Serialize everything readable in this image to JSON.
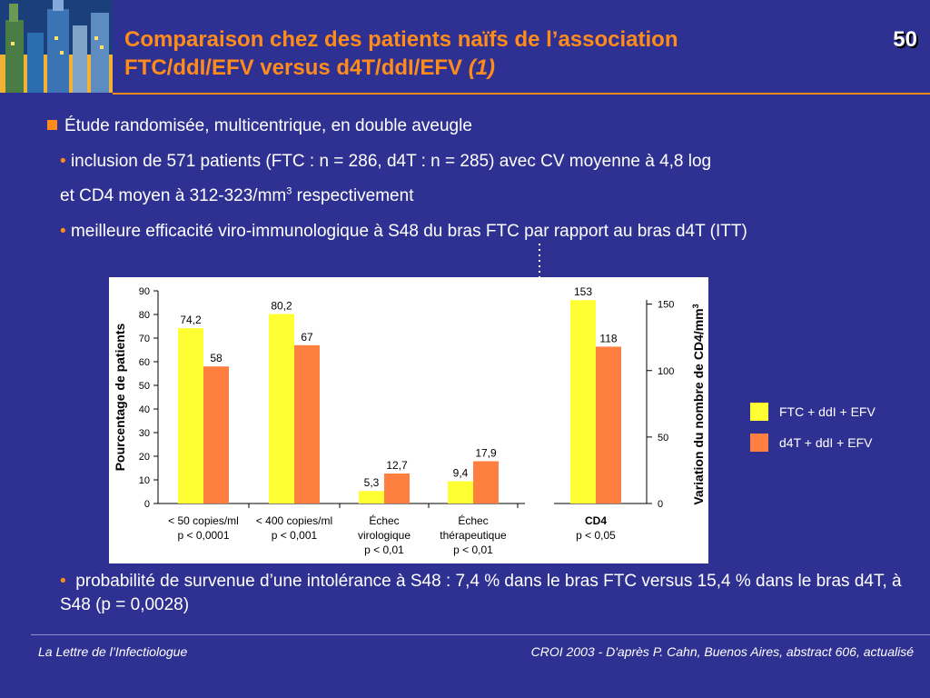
{
  "header": {
    "title_line1": "Comparaison chez des patients naïfs de l’association",
    "title_line2": "FTC/ddI/EFV versus d4T/ddI/EFV ",
    "title_ref": "(1)",
    "page_number": "50"
  },
  "body": {
    "main_bullet": "Étude randomisée, multicentrique, en double aveugle",
    "sub1_line1": "inclusion de 571 patients (FTC : n = 286, d4T : n = 285) avec CV moyenne à 4,8 log",
    "sub1_line2": "et CD4 moyen à 312-323/mm",
    "sub1_line2_sup": "3",
    "sub1_line2_end": " respectivement",
    "sub2": "meilleure efficacité viro-immunologique à S48 du bras FTC par rapport au bras d4T (ITT)",
    "bottom_bullet": "probabilité de survenue d’une intolérance à S48 : 7,4 % dans le bras FTC versus 15,4 % dans le bras d4T, à S48 (p = 0,0028)"
  },
  "footer": {
    "left": "La Lettre de l’Infectiologue",
    "right": "CROI 2003 - D'après P. Cahn, Buenos Aires, abstract 606, actualisé"
  },
  "colors": {
    "background": "#2e3192",
    "title": "#ff8c1a",
    "ftc": "#ffff33",
    "d4t": "#ff7f40"
  },
  "chart_data": {
    "type": "bar",
    "ylabel": "Pourcentage de patients",
    "ylim": [
      0,
      90
    ],
    "yticks": [
      "0",
      "10",
      "20",
      "30",
      "40",
      "50",
      "60",
      "70",
      "80",
      "90"
    ],
    "y2label": "Variation du nombre de CD4/mm",
    "y2label_sup": "3",
    "y2lim": [
      0,
      160
    ],
    "y2ticks": [
      "0",
      "50",
      "100",
      "150"
    ],
    "categories": [
      {
        "lines": [
          "< 50 copies/ml",
          "p < 0,0001"
        ],
        "axis": "left"
      },
      {
        "lines": [
          "< 400 copies/ml",
          "p < 0,001"
        ],
        "axis": "left"
      },
      {
        "lines": [
          "Échec",
          "virologique",
          "p < 0,01"
        ],
        "axis": "left"
      },
      {
        "lines": [
          "Échec",
          "thérapeutique",
          "p < 0,01"
        ],
        "axis": "left"
      },
      {
        "lines": [
          "CD4",
          "p < 0,05"
        ],
        "axis": "right",
        "bold_first": true
      }
    ],
    "series": [
      {
        "name": "FTC + ddI + EFV",
        "color": "#ffff33",
        "values": [
          74.2,
          80.2,
          5.3,
          9.4,
          153
        ],
        "labels": [
          "74,2",
          "80,2",
          "5,3",
          "9,4",
          "153"
        ]
      },
      {
        "name": "d4T + ddI + EFV",
        "color": "#ff7f40",
        "values": [
          58,
          67,
          12.7,
          17.9,
          118
        ],
        "labels": [
          "58",
          "67",
          "12,7",
          "17,9",
          "118"
        ]
      }
    ]
  }
}
